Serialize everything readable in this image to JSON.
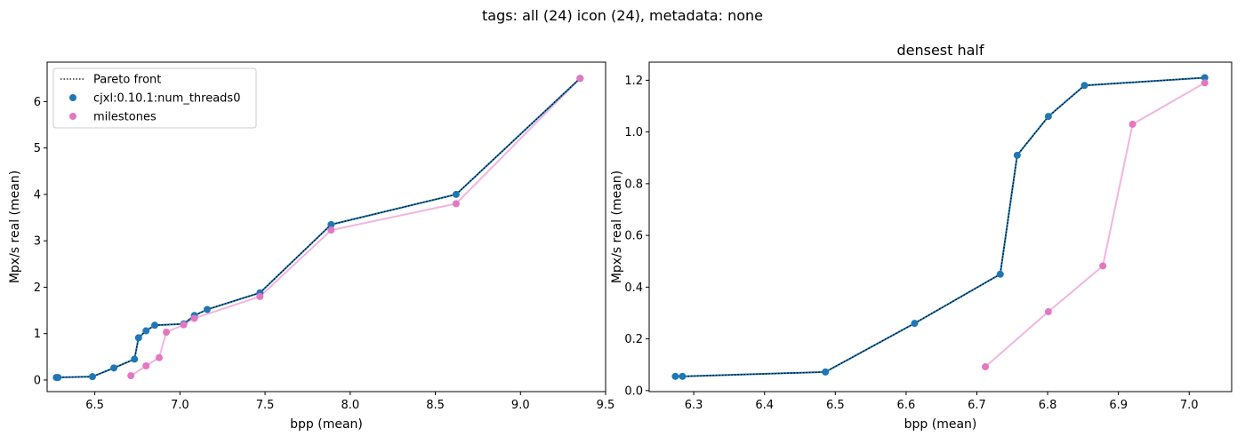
{
  "figure": {
    "suptitle": "tags: all (24) icon (24), metadata: none"
  },
  "colors": {
    "pareto": "#000000",
    "series1": "#1f77b4",
    "milestones": "#e377c2",
    "milestones_line": "#f0b6e0"
  },
  "chart_data": [
    {
      "type": "scatter",
      "title": "",
      "xlabel": "bpp (mean)",
      "ylabel": "Mpx/s real (mean)",
      "xlim": [
        6.22,
        9.5
      ],
      "ylim": [
        -0.25,
        6.85
      ],
      "xticks": [
        "6.5",
        "7.0",
        "7.5",
        "8.0",
        "8.5",
        "9.0",
        "9.5"
      ],
      "yticks": [
        "0",
        "1",
        "2",
        "3",
        "4",
        "5",
        "6"
      ],
      "legend_location": "top-left",
      "legend": [
        "Pareto front",
        "cjxl:0.10.1:num_threads0",
        "milestones"
      ],
      "pareto_front": {
        "x": [
          6.274,
          6.284,
          6.486,
          6.612,
          6.733,
          6.757,
          6.801,
          6.852,
          7.022,
          7.085,
          7.16,
          7.47,
          7.888,
          8.622,
          9.35
        ],
        "y": [
          0.055,
          0.055,
          0.072,
          0.26,
          0.45,
          0.91,
          1.06,
          1.18,
          1.21,
          1.39,
          1.52,
          1.88,
          3.35,
          4.0,
          6.5
        ]
      },
      "series": [
        {
          "name": "cjxl:0.10.1:num_threads0",
          "x": [
            6.274,
            6.284,
            6.486,
            6.612,
            6.733,
            6.757,
            6.801,
            6.852,
            7.022,
            7.085,
            7.16,
            7.47,
            7.888,
            8.622,
            9.35
          ],
          "y": [
            0.055,
            0.055,
            0.072,
            0.26,
            0.45,
            0.91,
            1.06,
            1.18,
            1.21,
            1.39,
            1.52,
            1.88,
            3.35,
            4.0,
            6.5
          ]
        },
        {
          "name": "milestones",
          "x": [
            6.712,
            6.801,
            6.878,
            6.92,
            7.022,
            7.085,
            7.47,
            7.888,
            8.622,
            9.35
          ],
          "y": [
            0.092,
            0.305,
            0.482,
            1.03,
            1.19,
            1.33,
            1.8,
            3.23,
            3.8,
            6.5
          ]
        }
      ]
    },
    {
      "type": "scatter",
      "title": "densest half",
      "xlabel": "bpp (mean)",
      "ylabel": "Mpx/s real (mean)",
      "xlim": [
        6.237,
        7.06
      ],
      "ylim": [
        -0.004,
        1.27
      ],
      "xticks": [
        "6.3",
        "6.4",
        "6.5",
        "6.6",
        "6.7",
        "6.8",
        "6.9",
        "7.0"
      ],
      "yticks": [
        "0.0",
        "0.2",
        "0.4",
        "0.6",
        "0.8",
        "1.0",
        "1.2"
      ],
      "pareto_front": {
        "x": [
          6.274,
          6.284,
          6.486,
          6.612,
          6.733,
          6.757,
          6.801,
          6.852,
          7.022
        ],
        "y": [
          0.055,
          0.055,
          0.072,
          0.26,
          0.45,
          0.91,
          1.06,
          1.18,
          1.21
        ]
      },
      "series": [
        {
          "name": "cjxl:0.10.1:num_threads0",
          "x": [
            6.274,
            6.284,
            6.486,
            6.612,
            6.733,
            6.757,
            6.801,
            6.852,
            7.022
          ],
          "y": [
            0.055,
            0.055,
            0.072,
            0.26,
            0.45,
            0.91,
            1.06,
            1.18,
            1.21
          ]
        },
        {
          "name": "milestones",
          "x": [
            6.712,
            6.801,
            6.878,
            6.92,
            7.022
          ],
          "y": [
            0.092,
            0.305,
            0.482,
            1.03,
            1.19
          ]
        }
      ]
    }
  ]
}
